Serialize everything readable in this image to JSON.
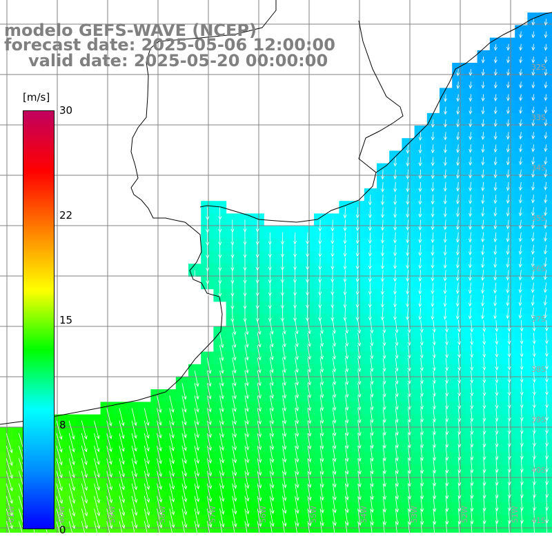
{
  "title": {
    "line1": "modelo GEFS-WAVE (NCEP)",
    "line2": "forecast date: 2025-05-06 12:00:00",
    "line3": "valid date: 2025-05-20 00:00:00"
  },
  "colorbar": {
    "unit": "[m/s]",
    "min": 0,
    "max": 30,
    "ticks": [
      "30",
      "22",
      "15",
      "8",
      "0"
    ],
    "colors": [
      "#0000ff",
      "#0090ff",
      "#00ffff",
      "#00ff00",
      "#ffff00",
      "#ff8000",
      "#ff0000",
      "#c00060"
    ]
  },
  "grid": {
    "lon_labels": [
      "61W",
      "60W",
      "59W",
      "58W",
      "57W",
      "56W",
      "55W",
      "54W",
      "53W",
      "52W",
      "51W"
    ],
    "lat_labels": [
      "32S",
      "33S",
      "34S",
      "35S",
      "36S",
      "37S",
      "38S",
      "39S",
      "40S",
      "41S"
    ]
  },
  "colors": {
    "land": "#ffffff",
    "coast": "#000000",
    "grid": "#808080",
    "arrows": "#ffffff",
    "title": "#808080"
  }
}
